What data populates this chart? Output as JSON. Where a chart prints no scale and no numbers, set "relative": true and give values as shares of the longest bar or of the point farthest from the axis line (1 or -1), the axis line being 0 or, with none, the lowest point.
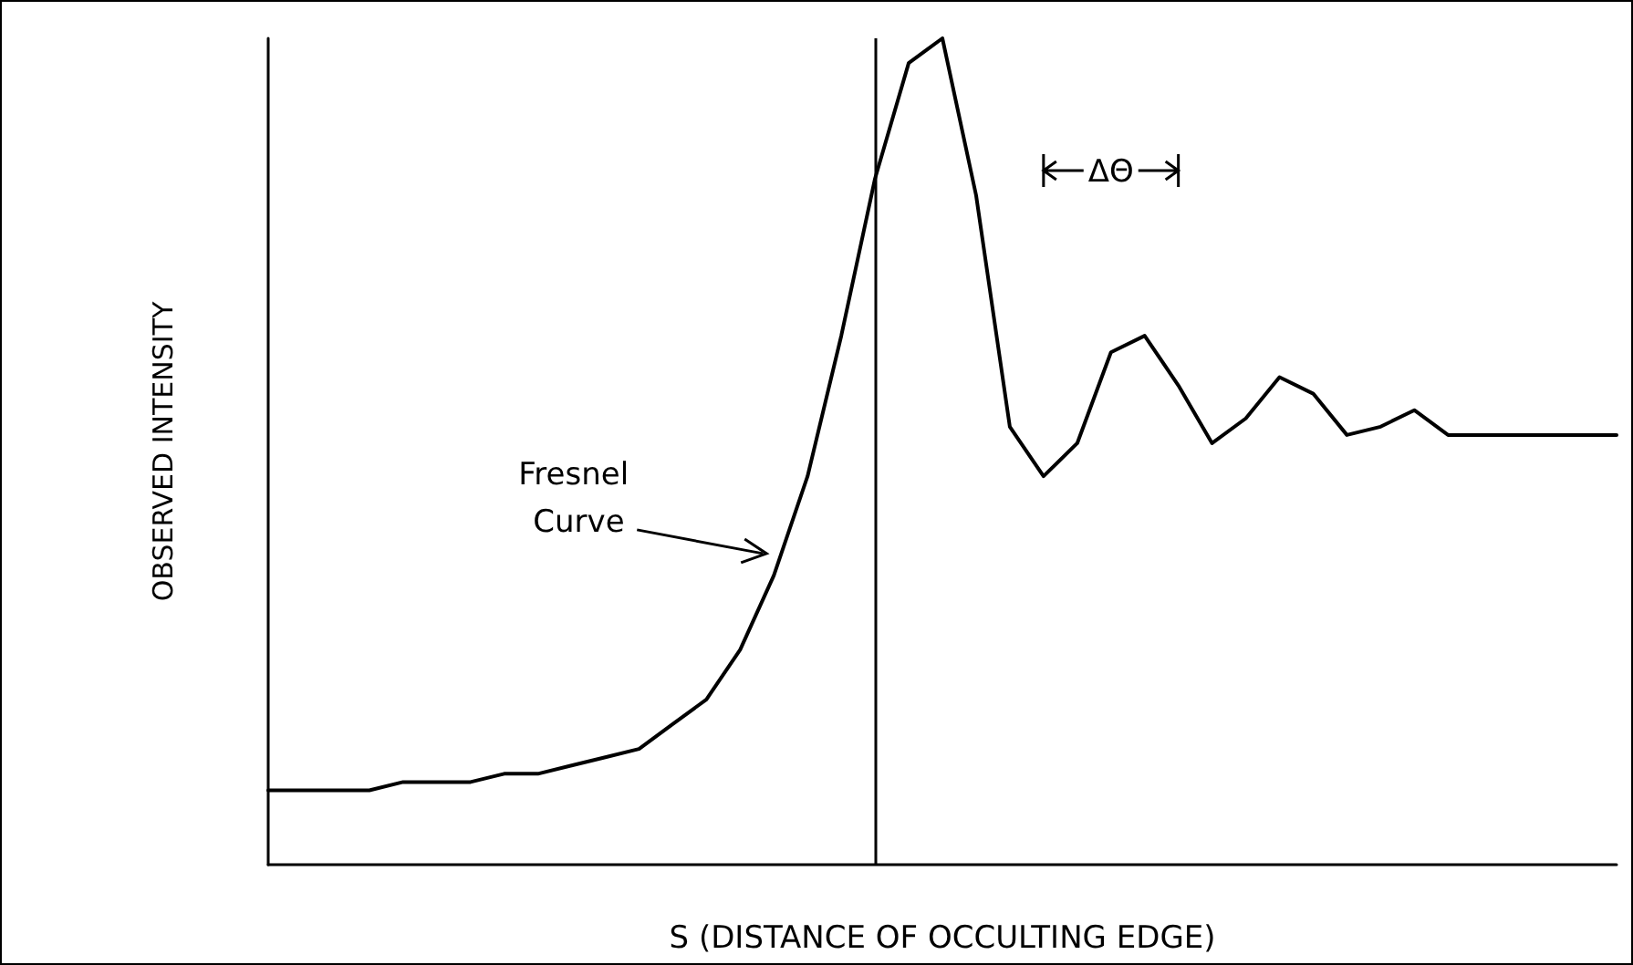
{
  "chart_data": {
    "type": "line",
    "relative": true,
    "xlabel": "S (DISTANCE OF OCCULTING EDGE)",
    "ylabel": "OBSERVED INTENSITY",
    "categories": [
      null,
      null,
      null,
      null,
      null,
      null,
      null,
      null,
      null,
      null,
      null,
      null,
      null,
      null,
      null,
      null,
      null,
      null,
      null,
      null,
      null,
      null,
      null,
      null,
      null,
      null,
      null,
      null,
      null,
      null,
      null,
      null,
      null,
      null,
      null,
      null,
      null,
      null,
      null,
      null,
      null
    ],
    "series": [
      {
        "color": "#000000",
        "values": [
          0.09,
          0.09,
          0.09,
          0.09,
          0.1,
          0.1,
          0.1,
          0.11,
          0.11,
          0.12,
          0.13,
          0.14,
          0.17,
          0.2,
          0.26,
          0.35,
          0.47,
          0.64,
          0.83,
          0.97,
          1,
          0.81,
          0.53,
          0.47,
          0.51,
          0.62,
          0.64,
          0.58,
          0.51,
          0.54,
          0.59,
          0.57,
          0.52,
          0.53,
          0.55,
          0.52,
          0.52,
          0.52,
          0.52,
          0.52,
          0.52
        ]
      }
    ],
    "annotations": [
      "Fresnel Curve",
      "ΔΘ"
    ],
    "marker": "none",
    "line_style": "solid",
    "grid": false
  }
}
